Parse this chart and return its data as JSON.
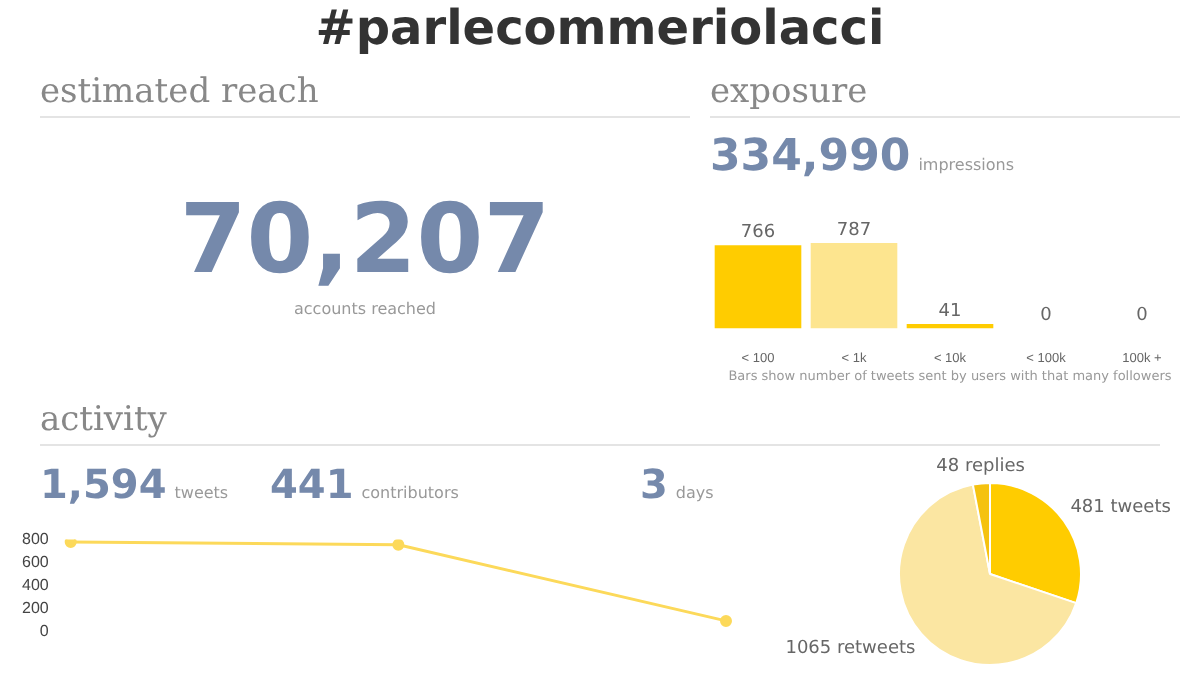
{
  "chart_data": [
    {
      "type": "other",
      "title": "#parlecommeriolacci",
      "subtitle": "estimated reach",
      "annotations": [
        "70,207",
        "accounts reached"
      ]
    },
    {
      "type": "bar",
      "title": "exposure",
      "annotations": [
        "334,990",
        "impressions",
        "Bars show number of tweets sent by users with that many followers"
      ],
      "categories": [
        "< 100",
        "< 1k",
        "< 10k",
        "< 100k",
        "100k +"
      ],
      "values": [
        766,
        787,
        41,
        0,
        0
      ],
      "colors": [
        "#ffcc00",
        "#fde58f",
        "#ffcc00",
        "#ffcc00",
        "#ffcc00"
      ],
      "data_labels": true
    },
    {
      "type": "other",
      "title": "activity",
      "annotations": [
        "1,594",
        "tweets",
        "441",
        "contributors",
        "3",
        "days"
      ]
    },
    {
      "type": "line",
      "categories": [
        null,
        null,
        null
      ],
      "series": [
        {
          "color": "#fcd95a",
          "values": [
            780,
            755,
            90
          ]
        }
      ],
      "ylim": [
        0,
        800
      ],
      "yticks": [
        0,
        200,
        400,
        600,
        800
      ],
      "marker": "circle",
      "line_style": "solid"
    },
    {
      "type": "pie",
      "categories": [
        "tweets",
        "retweets",
        "replies"
      ],
      "values": [
        481,
        1065,
        48
      ],
      "colors": [
        "#ffcc00",
        "#fbe6a2",
        "#f5c20f"
      ],
      "data_labels": true
    }
  ]
}
